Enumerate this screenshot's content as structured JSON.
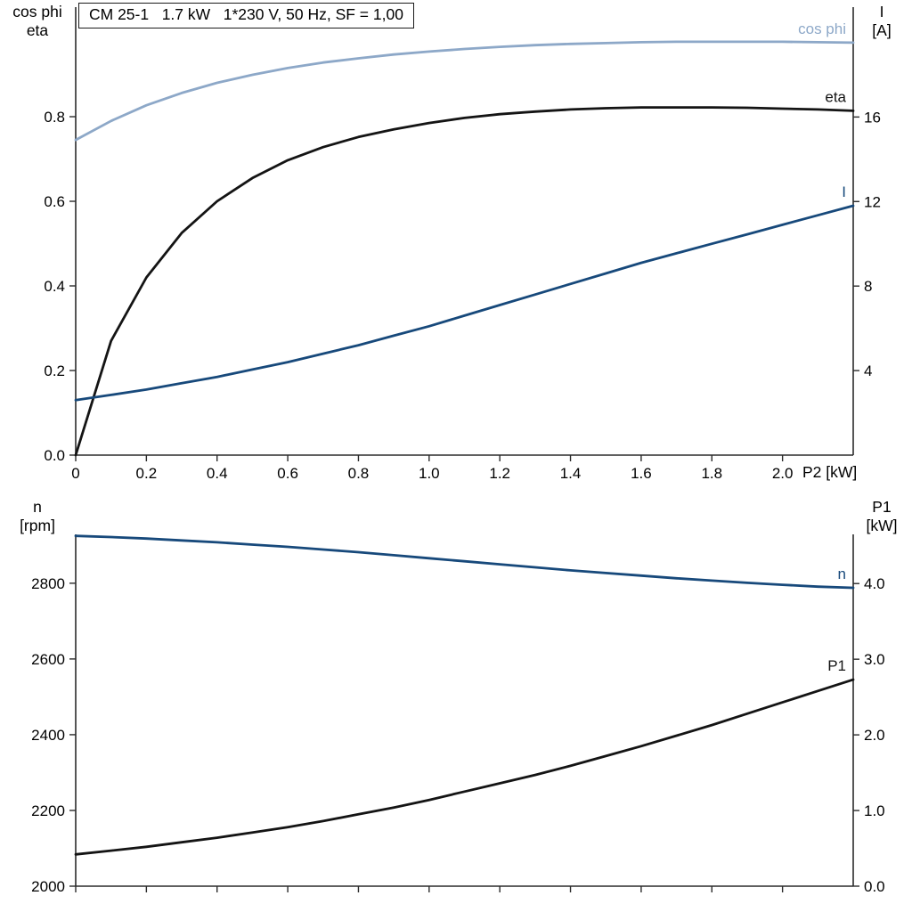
{
  "colors": {
    "axis": "#2b2b2b",
    "light_blue": "#8da8c8",
    "dark_blue": "#17497b",
    "black_curve": "#141414"
  },
  "chart_data": [
    {
      "type": "line",
      "title": "CM 25-1   1.7 kW   1*230 V, 50 Hz, SF = 1,00",
      "xlabel": "P2 [kW]",
      "xlim": [
        0,
        2.2
      ],
      "x_tick_values": [
        0,
        0.2,
        0.4,
        0.6,
        0.8,
        1.0,
        1.2,
        1.4,
        1.6,
        1.8,
        2.0
      ],
      "x_tick_labels": [
        "0",
        "0.2",
        "0.4",
        "0.6",
        "0.8",
        "1.0",
        "1.2",
        "1.4",
        "1.6",
        "1.8",
        "2.0"
      ],
      "show_x_tick_labels": true,
      "grid": false,
      "legend_position": "curve-end-labels",
      "axes": {
        "left": {
          "title_lines": [
            "cos phi",
            "eta"
          ],
          "lim": [
            0,
            1.059
          ],
          "tick_values": [
            0.0,
            0.2,
            0.4,
            0.6,
            0.8
          ],
          "tick_labels": [
            "0.0",
            "0.2",
            "0.4",
            "0.6",
            "0.8"
          ]
        },
        "right": {
          "title_lines": [
            "I",
            "[A]"
          ],
          "lim": [
            0,
            21.2
          ],
          "tick_values": [
            4,
            8,
            12,
            16
          ],
          "tick_labels": [
            "4",
            "8",
            "12",
            "16"
          ]
        }
      },
      "x": [
        0,
        0.1,
        0.2,
        0.3,
        0.4,
        0.5,
        0.6,
        0.7,
        0.8,
        0.9,
        1.0,
        1.1,
        1.2,
        1.3,
        1.4,
        1.5,
        1.6,
        1.7,
        1.8,
        1.9,
        2.0,
        2.1,
        2.2
      ],
      "series": [
        {
          "id": "cos_phi",
          "name": "cos phi",
          "axis": "left",
          "color": "#8da8c8",
          "values": [
            0.745,
            0.79,
            0.827,
            0.856,
            0.88,
            0.899,
            0.915,
            0.928,
            0.938,
            0.947,
            0.954,
            0.96,
            0.965,
            0.969,
            0.972,
            0.974,
            0.976,
            0.977,
            0.977,
            0.977,
            0.977,
            0.976,
            0.975
          ]
        },
        {
          "id": "eta",
          "name": "eta",
          "axis": "left",
          "color": "#141414",
          "values": [
            0.0,
            0.27,
            0.42,
            0.525,
            0.6,
            0.655,
            0.697,
            0.728,
            0.752,
            0.77,
            0.785,
            0.797,
            0.806,
            0.812,
            0.817,
            0.82,
            0.822,
            0.822,
            0.822,
            0.821,
            0.819,
            0.817,
            0.814
          ]
        },
        {
          "id": "current",
          "name": "I",
          "axis": "right",
          "color": "#17497b",
          "values": [
            2.6,
            2.85,
            3.1,
            3.4,
            3.7,
            4.05,
            4.4,
            4.8,
            5.2,
            5.65,
            6.1,
            6.6,
            7.1,
            7.6,
            8.1,
            8.6,
            9.1,
            9.55,
            10.0,
            10.45,
            10.9,
            11.35,
            11.8
          ]
        }
      ]
    },
    {
      "type": "line",
      "title": "",
      "xlabel": "",
      "xlim": [
        0,
        2.2
      ],
      "x_tick_values": [
        0,
        0.2,
        0.4,
        0.6,
        0.8,
        1.0,
        1.2,
        1.4,
        1.6,
        1.8,
        2.0
      ],
      "x_tick_labels": [],
      "show_x_tick_labels": false,
      "grid": false,
      "legend_position": "curve-end-labels",
      "axes": {
        "left": {
          "title_lines": [
            "n",
            "[rpm]"
          ],
          "lim": [
            2000,
            2929
          ],
          "tick_values": [
            2000,
            2200,
            2400,
            2600,
            2800
          ],
          "tick_labels": [
            "2000",
            "2200",
            "2400",
            "2600",
            "2800"
          ]
        },
        "right": {
          "title_lines": [
            "P1",
            "[kW]"
          ],
          "lim": [
            0,
            4.65
          ],
          "tick_values": [
            0,
            1,
            2,
            3,
            4
          ],
          "tick_labels": [
            "0.0",
            "1.0",
            "2.0",
            "3.0",
            "4.0"
          ]
        }
      },
      "x": [
        0,
        0.1,
        0.2,
        0.3,
        0.4,
        0.5,
        0.6,
        0.7,
        0.8,
        0.9,
        1.0,
        1.1,
        1.2,
        1.3,
        1.4,
        1.5,
        1.6,
        1.7,
        1.8,
        1.9,
        2.0,
        2.1,
        2.2
      ],
      "series": [
        {
          "id": "speed",
          "name": "n",
          "axis": "left",
          "color": "#17497b",
          "values": [
            2925,
            2922,
            2918,
            2913,
            2908,
            2902,
            2896,
            2889,
            2882,
            2874,
            2866,
            2858,
            2850,
            2842,
            2834,
            2827,
            2820,
            2813,
            2807,
            2801,
            2796,
            2791,
            2788
          ]
        },
        {
          "id": "input_power",
          "name": "P1",
          "axis": "right",
          "color": "#141414",
          "values": [
            0.42,
            0.47,
            0.52,
            0.58,
            0.64,
            0.71,
            0.78,
            0.86,
            0.95,
            1.04,
            1.14,
            1.25,
            1.36,
            1.47,
            1.59,
            1.72,
            1.85,
            1.99,
            2.13,
            2.28,
            2.43,
            2.58,
            2.73
          ]
        }
      ]
    }
  ]
}
